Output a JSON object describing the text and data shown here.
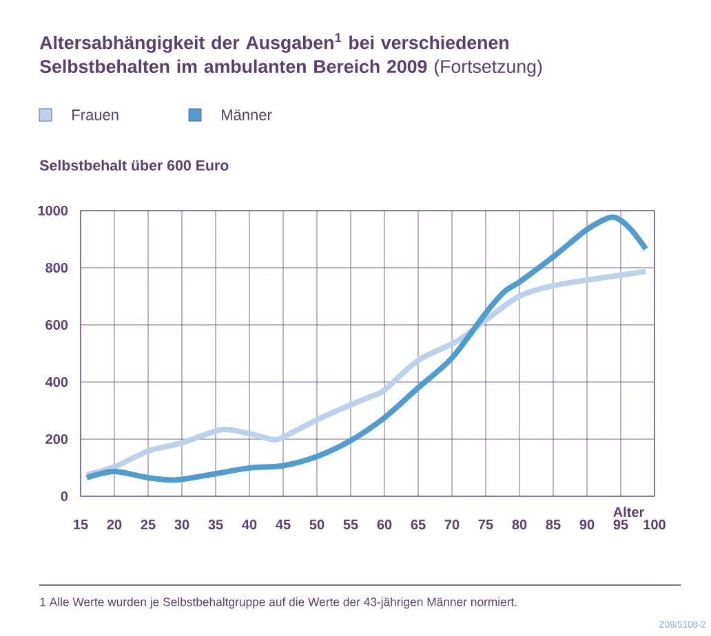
{
  "chart_data": {
    "type": "line",
    "title": "**Altersabhängigkeit der Ausgaben$^{1}$ bei verschiedenen Selbstbehalten im ambulanten Bereich 2009** (Fortsetzung)",
    "subtitle": "Selbstbehalt über 600 Euro",
    "xlabel": "Alter",
    "annotations": [
      "1   Alle Werte wurden je Selbstbehaltgruppe auf die Werte der 43-jährigen Männer normiert.",
      "Z09/5108-2"
    ],
    "series": [
      {
        "name": "Frauen",
        "color": "#bcd1ec",
        "x": [
          15.9,
          20,
          25.1,
          30,
          35.9,
          40,
          43.4,
          45,
          50,
          55,
          58.3,
          60,
          65,
          70,
          72.4,
          75,
          80,
          85,
          90,
          95,
          98.7
        ],
        "values": [
          75,
          103,
          159,
          187,
          233,
          219,
          199,
          207,
          268,
          320,
          352,
          372,
          476,
          533,
          569,
          617,
          701,
          737,
          757,
          774,
          787
        ]
      },
      {
        "name": "Männer",
        "color": "#4f9ccf",
        "x": [
          15.9,
          20,
          25,
          29.2,
          35,
          40,
          45,
          50,
          55,
          60,
          65,
          70,
          75,
          77.8,
          80,
          85,
          90,
          93.4,
          95,
          96.8,
          98.7
        ],
        "values": [
          65,
          87,
          65,
          57,
          79,
          99,
          107,
          139,
          195,
          275,
          380,
          484,
          641,
          717,
          750,
          838,
          934,
          976,
          966,
          926,
          866
        ]
      }
    ],
    "xlim": [
      15,
      100
    ],
    "xticks": [
      15,
      20,
      25,
      30,
      35,
      40,
      45,
      50,
      55,
      60,
      65,
      70,
      75,
      80,
      85,
      90,
      95,
      100
    ],
    "ylim": [
      0,
      1000
    ],
    "yticks": [
      0,
      200,
      400,
      600,
      800,
      1000
    ],
    "grid": true,
    "legend": "top left"
  }
}
